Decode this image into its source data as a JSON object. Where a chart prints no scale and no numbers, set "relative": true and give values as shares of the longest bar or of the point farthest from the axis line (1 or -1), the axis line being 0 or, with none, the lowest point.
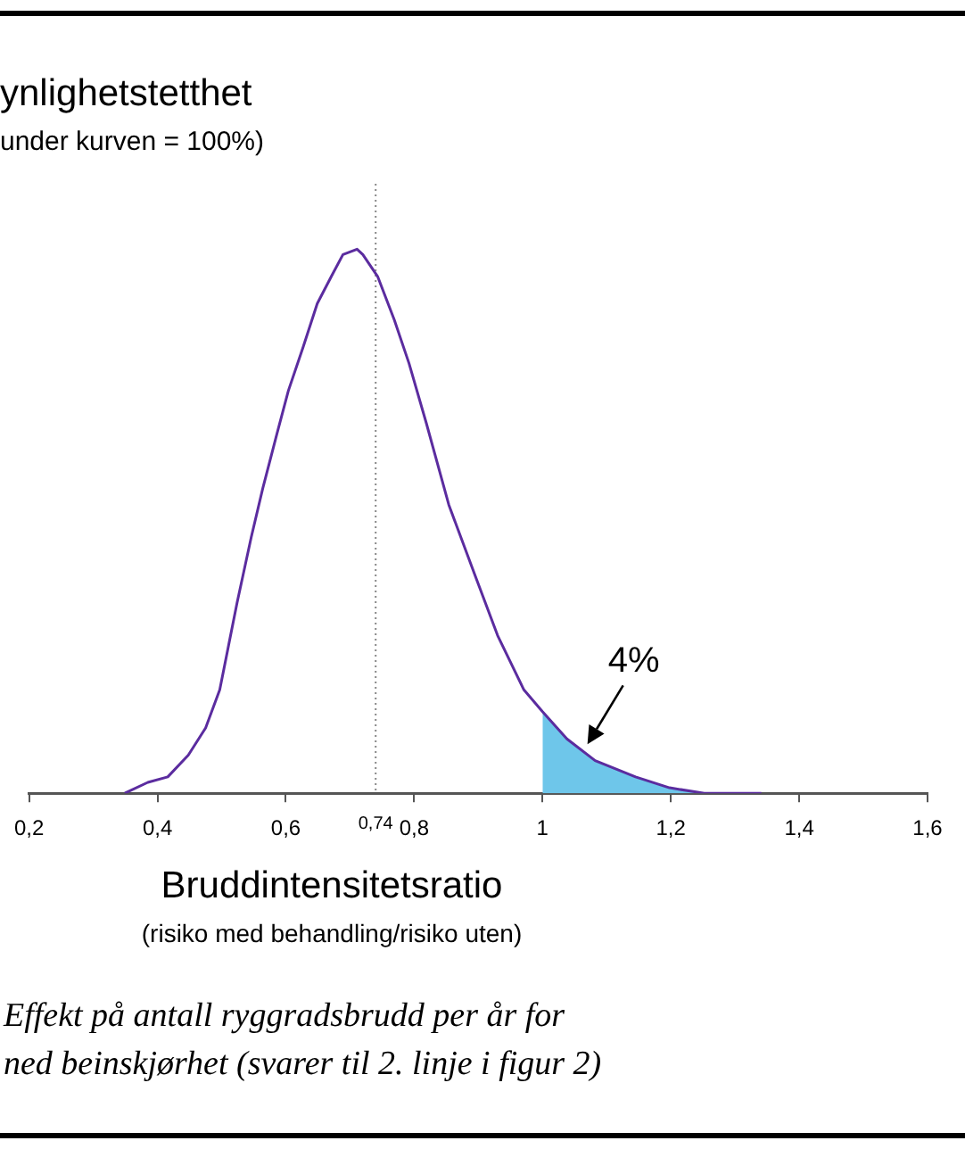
{
  "chart_data": {
    "type": "line",
    "ylabel": "ynlighetstetthet\nunder kurven = 100%)",
    "xlabel": "Bruddintensitetsratio\n(risiko med behandling/risiko uten)",
    "relative": true,
    "marker": "none",
    "grid": false,
    "legend": false,
    "xlim": [
      0.2,
      1.6
    ],
    "xticks": [
      {
        "value": 0.2,
        "label": "0,2"
      },
      {
        "value": 0.4,
        "label": "0,4"
      },
      {
        "value": 0.6,
        "label": "0,6"
      },
      {
        "value": 0.8,
        "label": "0,8"
      },
      1,
      {
        "value": 1.2,
        "label": "1,2"
      },
      {
        "value": 1.4,
        "label": "1,4"
      },
      {
        "value": 1.6,
        "label": "1,6"
      }
    ],
    "series": [
      {
        "type": "line",
        "color": "#5b2c9f",
        "x": [
          0.349,
          0.385,
          0.416,
          0.448,
          0.475,
          0.497,
          0.524,
          0.546,
          0.564,
          0.586,
          0.604,
          0.627,
          0.649,
          0.671,
          0.689,
          0.711,
          0.72,
          0.743,
          0.769,
          0.792,
          0.819,
          0.854,
          0.895,
          0.93,
          0.971,
          1,
          1.038,
          1.082,
          1.145,
          1.198,
          1.252,
          1.341
        ],
        "values": [
          0,
          0.02,
          0.03,
          0.07,
          0.12,
          0.19,
          0.35,
          0.47,
          0.56,
          0.66,
          0.74,
          0.82,
          0.9,
          0.95,
          0.99,
          1,
          0.99,
          0.95,
          0.87,
          0.79,
          0.68,
          0.53,
          0.4,
          0.29,
          0.19,
          0.15,
          0.1,
          0.06,
          0.03,
          0.01,
          0,
          0
        ]
      },
      {
        "type": "area",
        "color": "#6ec6ea",
        "x": [
          1,
          1.038,
          1.082,
          1.145,
          1.198,
          1.252,
          1.341
        ],
        "values": [
          0.15,
          0.1,
          0.06,
          0.03,
          0.01,
          0,
          0
        ]
      }
    ],
    "ref_lines": [
      {
        "axis": "x",
        "value": 0.74,
        "label": "0,74",
        "line_style": "dotted",
        "color": "#888888"
      }
    ],
    "annotations": [
      {
        "text": "4%",
        "x": 1.07,
        "y": 0.09
      },
      "Effekt på antall ryggradsbrudd per år for\nned beinskjørhet (svarer til 2. linje i figur 2)"
    ]
  }
}
